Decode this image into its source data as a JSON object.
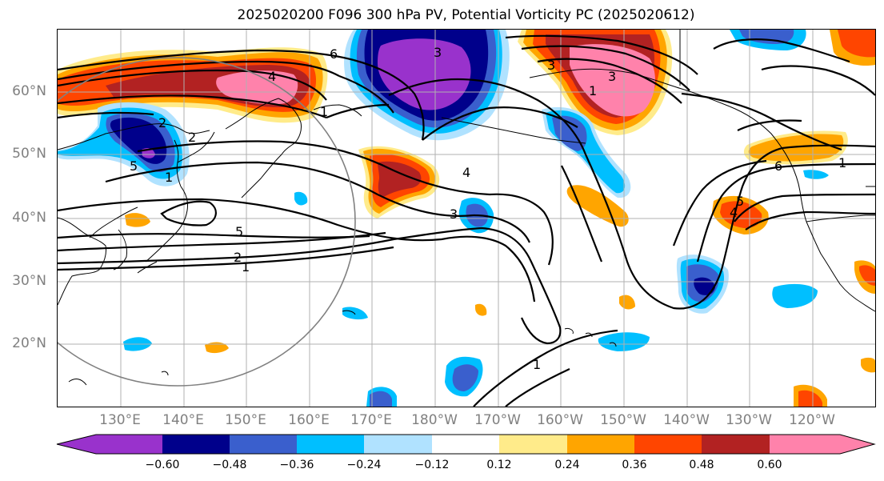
{
  "title": "2025020200 F096 300 hPa PV, Potential Vorticity PC (2025020612)",
  "lat_labels": [
    "60°N",
    "50°N",
    "40°N",
    "30°N",
    "20°N"
  ],
  "lon_labels": [
    "130°E",
    "140°E",
    "150°E",
    "160°E",
    "170°E",
    "180°W",
    "170°W",
    "160°W",
    "150°W",
    "140°W",
    "130°W",
    "120°W"
  ],
  "colorbar": {
    "tick_labels": [
      "−0.60",
      "−0.48",
      "−0.36",
      "−0.24",
      "−0.12",
      "0.12",
      "0.24",
      "0.36",
      "0.48",
      "0.60"
    ],
    "colors": [
      "#9932cc",
      "#00008b",
      "#3a5fcd",
      "#00bfff",
      "#b0e2ff",
      "#ffffff",
      "#ffeb8a",
      "#ffa500",
      "#ff4500",
      "#b22222",
      "#ff82ab"
    ]
  },
  "contour_labels": [
    "6",
    "4",
    "2",
    "1",
    "5",
    "2",
    "1",
    "5",
    "2",
    "1",
    "4",
    "3",
    "3",
    "1",
    "3",
    "1",
    "5",
    "4",
    "6",
    "3",
    "1"
  ],
  "map_colors": {
    "contour": "#000000",
    "grid": "#b0b0b0",
    "coastline": "#000000",
    "circle": "#808080"
  }
}
